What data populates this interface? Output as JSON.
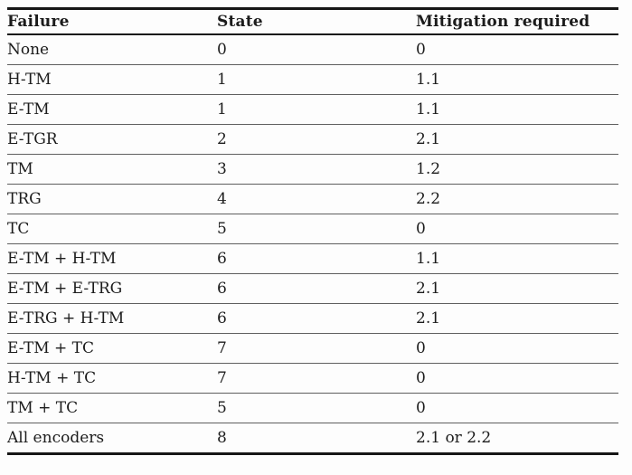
{
  "table": {
    "columns": [
      {
        "label": "Failure"
      },
      {
        "label": "State"
      },
      {
        "label": "Mitigation required"
      }
    ],
    "rows": [
      {
        "failure": "None",
        "state": "0",
        "mitigation": "0"
      },
      {
        "failure": "H-TM",
        "state": "1",
        "mitigation": "1.1"
      },
      {
        "failure": "E-TM",
        "state": "1",
        "mitigation": "1.1"
      },
      {
        "failure": "E-TGR",
        "state": "2",
        "mitigation": "2.1"
      },
      {
        "failure": "TM",
        "state": "3",
        "mitigation": "1.2"
      },
      {
        "failure": "TRG",
        "state": "4",
        "mitigation": "2.2"
      },
      {
        "failure": "TC",
        "state": "5",
        "mitigation": "0"
      },
      {
        "failure": "E-TM + H-TM",
        "state": "6",
        "mitigation": "1.1"
      },
      {
        "failure": "E-TM + E-TRG",
        "state": "6",
        "mitigation": "2.1"
      },
      {
        "failure": "E-TRG + H-TM",
        "state": "6",
        "mitigation": "2.1"
      },
      {
        "failure": "E-TM + TC",
        "state": "7",
        "mitigation": "0"
      },
      {
        "failure": "H-TM + TC",
        "state": "7",
        "mitigation": "0"
      },
      {
        "failure": "TM + TC",
        "state": "5",
        "mitigation": "0"
      },
      {
        "failure": "All encoders",
        "state": "8",
        "mitigation": "2.1 or 2.2"
      }
    ]
  },
  "colors": {
    "background": "#fdfdfd",
    "text": "#1c1c1c",
    "thick_rule": "#161616",
    "row_separator": "#5f5f5f"
  }
}
